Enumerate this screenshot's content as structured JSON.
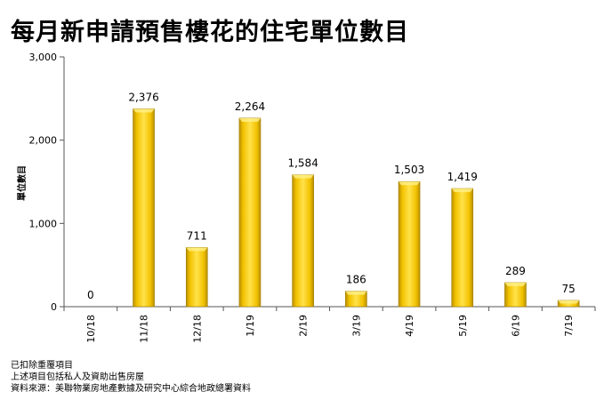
{
  "title": "每月新申請預售樓花的住宅單位數目",
  "notes": [
    "已扣除重覆項目",
    "上述項目包括私人及資助出售房屋",
    "資料來源：美聯物業房地產數據及研究中心綜合地政總署資料"
  ],
  "chart_data": {
    "type": "bar",
    "title": "每月新申請預售樓花的住宅單位數目",
    "ylabel": "單位數目",
    "xlabel": "",
    "categories": [
      "10/18",
      "11/18",
      "12/18",
      "1/19",
      "2/19",
      "3/19",
      "4/19",
      "5/19",
      "6/19",
      "7/19"
    ],
    "values": [
      0,
      2376,
      711,
      2264,
      1584,
      186,
      1503,
      1419,
      289,
      75
    ],
    "value_labels": [
      "0",
      "2,376",
      "711",
      "2,264",
      "1,584",
      "186",
      "1,503",
      "1,419",
      "289",
      "75"
    ],
    "ylim": [
      0,
      3000
    ],
    "yticks": [
      0,
      1000,
      2000,
      3000
    ],
    "ytick_labels": [
      "0",
      "1,000",
      "2,000",
      "3,000"
    ],
    "grid": false,
    "bar_color": "#F5C400"
  }
}
